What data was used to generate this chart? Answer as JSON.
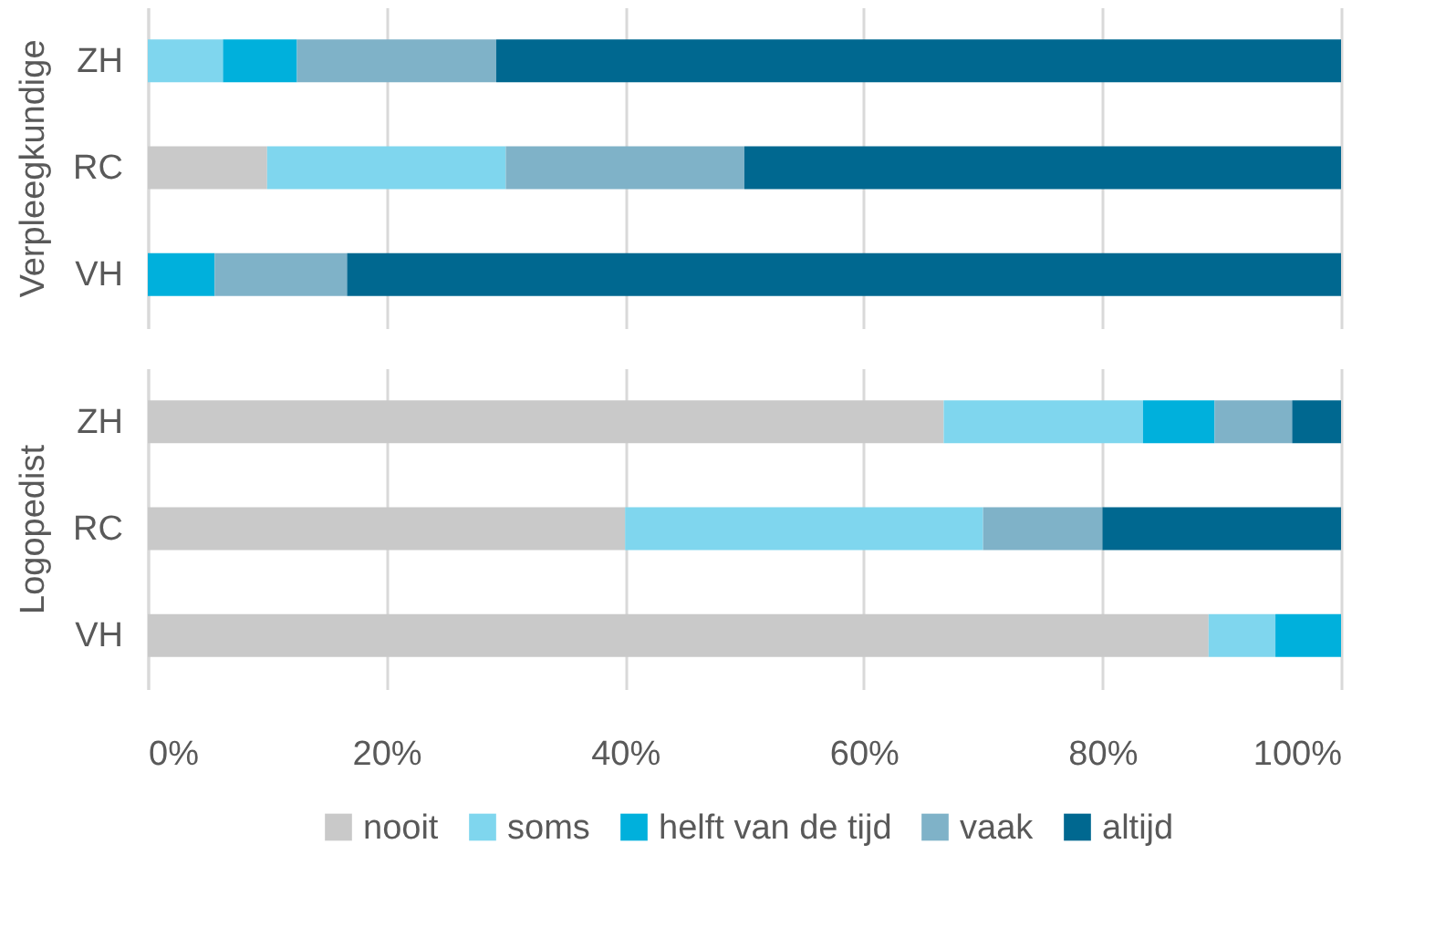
{
  "chart_data": [
    {
      "type": "bar",
      "orientation": "horizontal",
      "stacked": true,
      "ylabel": "Verpleegkundige",
      "categories": [
        "ZH",
        "RC",
        "VH"
      ],
      "xlim": [
        0,
        100
      ],
      "xticks": [
        0,
        20,
        40,
        60,
        80,
        100
      ],
      "grid": "x",
      "tick_labels": "y",
      "legend": "bottom",
      "series": [
        {
          "name": "nooit",
          "color": "#c9c9c9",
          "values": [
            0,
            10,
            0
          ]
        },
        {
          "name": "soms",
          "color": "#7fd6ee",
          "values": [
            6.3,
            20,
            0
          ]
        },
        {
          "name": "helft van de tijd",
          "color": "#00b0dc",
          "values": [
            6.2,
            0,
            5.6
          ]
        },
        {
          "name": "vaak",
          "color": "#7fb2c8",
          "values": [
            16.7,
            20,
            11.1
          ]
        },
        {
          "name": "altijd",
          "color": "#006890",
          "values": [
            70.8,
            50,
            83.3
          ]
        }
      ]
    },
    {
      "type": "bar",
      "orientation": "horizontal",
      "stacked": true,
      "ylabel": "Logopedist",
      "categories": [
        "ZH",
        "RC",
        "VH"
      ],
      "xlim": [
        0,
        100
      ],
      "xticks": [
        {
          "value": 0,
          "label": "0%"
        },
        {
          "value": 20,
          "label": "20%"
        },
        {
          "value": 40,
          "label": "40%"
        },
        {
          "value": 60,
          "label": "60%"
        },
        {
          "value": 80,
          "label": "80%"
        },
        {
          "value": 100,
          "label": "100%"
        }
      ],
      "grid": "x",
      "legend": "bottom",
      "series": [
        {
          "name": "nooit",
          "color": "#c9c9c9",
          "values": [
            66.7,
            40,
            88.9
          ]
        },
        {
          "name": "soms",
          "color": "#7fd6ee",
          "values": [
            16.7,
            30,
            5.6
          ]
        },
        {
          "name": "helft van de tijd",
          "color": "#00b0dc",
          "values": [
            6,
            0,
            5.5
          ]
        },
        {
          "name": "vaak",
          "color": "#7fb2c8",
          "values": [
            6.5,
            10,
            0
          ]
        },
        {
          "name": "altijd",
          "color": "#006890",
          "values": [
            4.1,
            20,
            0
          ]
        }
      ]
    }
  ]
}
